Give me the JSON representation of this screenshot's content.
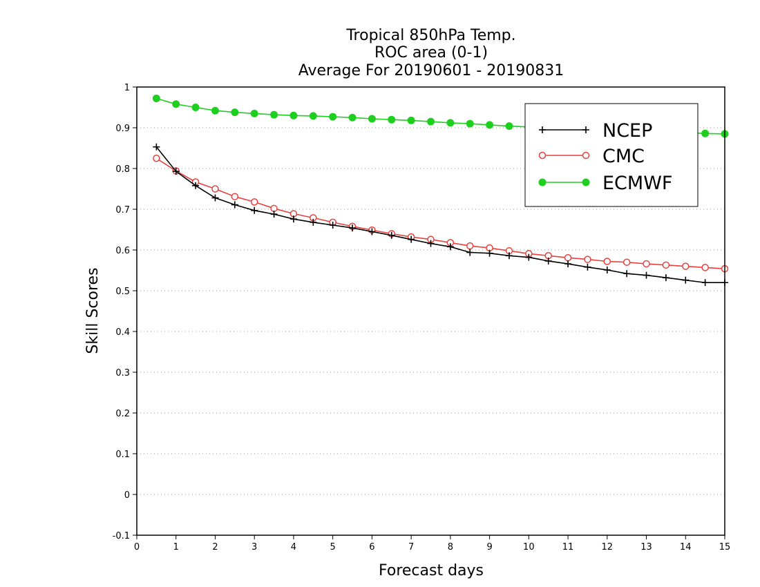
{
  "chart_data": {
    "type": "line",
    "title": [
      "Tropical 850hPa Temp.",
      "ROC area (0-1)",
      "Average For 20190601 - 20190831"
    ],
    "xlabel": "Forecast days",
    "ylabel": "Skill Scores",
    "xlim": [
      0,
      15
    ],
    "ylim": [
      -0.1,
      1
    ],
    "xticks": [
      "0",
      "1",
      "2",
      "3",
      "4",
      "5",
      "6",
      "7",
      "8",
      "9",
      "10",
      "11",
      "12",
      "13",
      "14",
      "15"
    ],
    "yticks": [
      "-0.1",
      "0",
      "0.1",
      "0.2",
      "0.3",
      "0.4",
      "0.5",
      "0.6",
      "0.7",
      "0.8",
      "0.9",
      "1"
    ],
    "grid": "horizontal dotted",
    "legend_position": "top-right",
    "x": [
      0.5,
      1,
      1.5,
      2,
      2.5,
      3,
      3.5,
      4,
      4.5,
      5,
      5.5,
      6,
      6.5,
      7,
      7.5,
      8,
      8.5,
      9,
      9.5,
      10,
      10.5,
      11,
      11.5,
      12,
      12.5,
      13,
      13.5,
      14,
      14.5,
      15
    ],
    "series": [
      {
        "name": "NCEP",
        "color": "#000000",
        "marker": "plus",
        "values": [
          0.853,
          0.793,
          0.758,
          0.728,
          0.711,
          0.697,
          0.688,
          0.676,
          0.668,
          0.661,
          0.654,
          0.645,
          0.636,
          0.626,
          0.616,
          0.608,
          0.594,
          0.592,
          0.586,
          0.582,
          0.573,
          0.566,
          0.558,
          0.551,
          0.542,
          0.538,
          0.532,
          0.526,
          0.52,
          0.52
        ]
      },
      {
        "name": "CMC",
        "color": "#e8413e",
        "marker": "open-circle",
        "values": [
          0.825,
          0.794,
          0.767,
          0.75,
          0.731,
          0.718,
          0.702,
          0.689,
          0.679,
          0.668,
          0.658,
          0.649,
          0.64,
          0.632,
          0.626,
          0.618,
          0.61,
          0.605,
          0.598,
          0.591,
          0.586,
          0.581,
          0.577,
          0.572,
          0.57,
          0.566,
          0.563,
          0.56,
          0.557,
          0.554
        ]
      },
      {
        "name": "ECMWF",
        "color": "#1fcf1f",
        "marker": "filled-circle",
        "values": [
          0.972,
          0.958,
          0.95,
          0.942,
          0.938,
          0.935,
          0.932,
          0.93,
          0.929,
          0.927,
          0.925,
          0.922,
          0.92,
          0.918,
          0.915,
          0.912,
          0.91,
          0.907,
          0.904,
          0.902,
          0.9,
          0.898,
          0.896,
          0.894,
          0.892,
          0.891,
          0.889,
          0.888,
          0.886,
          0.885
        ]
      }
    ]
  }
}
